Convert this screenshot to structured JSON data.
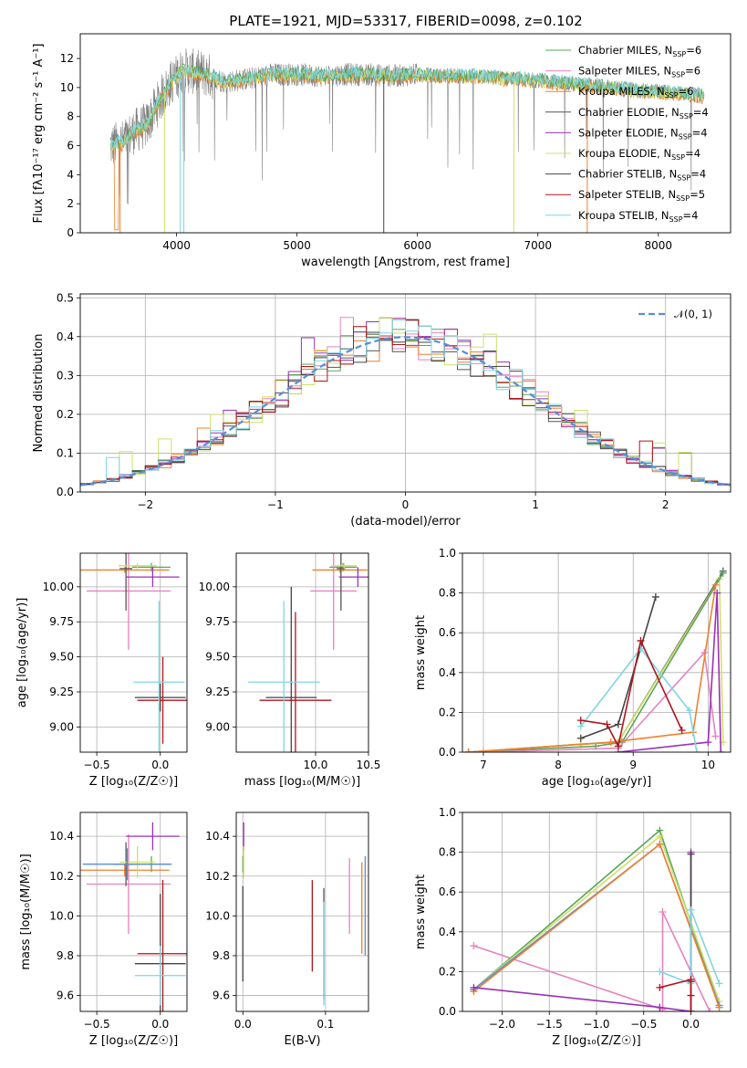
{
  "figure_title": "PLATE=1921, MJD=53317, FIBERID=0098, z=0.102",
  "colors": {
    "chabrier_miles": "#5aa55a",
    "salpeter_miles": "#e882bf",
    "kroupa_miles": "#f07f2e",
    "chabrier_elodie": "#555555",
    "salpeter_elodie": "#9b30b8",
    "kroupa_elodie": "#cfe06a",
    "chabrier_stelib": "#444444",
    "salpeter_stelib": "#b0141c",
    "kroupa_stelib": "#7fd6df",
    "data_grey": "#808080",
    "normal": "#5a8dd8",
    "mass_blue": "#5a8dd8"
  },
  "chart_data": [
    {
      "id": "spectrum",
      "type": "line",
      "title": "PLATE=1921, MJD=53317, FIBERID=0098, z=0.102",
      "xlabel": "wavelength [Angstrom, rest frame]",
      "ylabel": "Flux [fλ10⁻¹⁷ erg cm⁻² s⁻¹ A⁻¹]",
      "xlim": [
        3200,
        8600
      ],
      "ylim": [
        0,
        13.7
      ],
      "xticks": [
        4000,
        5000,
        6000,
        7000,
        8000
      ],
      "yticks": [
        0,
        2,
        4,
        6,
        8,
        10,
        12
      ],
      "legend_position": "top-right",
      "legend": [
        {
          "label": "Chabrier MILES, N",
          "sub": "SSP",
          "suffix": "=6",
          "color": "chabrier_miles"
        },
        {
          "label": "Salpeter MILES, N",
          "sub": "SSP",
          "suffix": "=6",
          "color": "salpeter_miles"
        },
        {
          "label": "Kroupa MILES, N",
          "sub": "SSP",
          "suffix": "=6",
          "color": "kroupa_miles"
        },
        {
          "label": "Chabrier ELODIE, N",
          "sub": "SSP",
          "suffix": "=4",
          "color": "chabrier_elodie"
        },
        {
          "label": "Salpeter ELODIE, N",
          "sub": "SSP",
          "suffix": "=4",
          "color": "salpeter_elodie"
        },
        {
          "label": "Kroupa ELODIE, N",
          "sub": "SSP",
          "suffix": "=4",
          "color": "kroupa_elodie"
        },
        {
          "label": "Chabrier STELIB, N",
          "sub": "SSP",
          "suffix": "=4",
          "color": "chabrier_stelib"
        },
        {
          "label": "Salpeter STELIB, N",
          "sub": "SSP",
          "suffix": "=5",
          "color": "salpeter_stelib"
        },
        {
          "label": "Kroupa STELIB, N",
          "sub": "SSP",
          "suffix": "=4",
          "color": "kroupa_stelib"
        }
      ],
      "continuum": [
        [
          3450,
          6.0
        ],
        [
          3550,
          6.2
        ],
        [
          3650,
          7.0
        ],
        [
          3750,
          7.4
        ],
        [
          3850,
          9.0
        ],
        [
          3950,
          10.3
        ],
        [
          4050,
          11.2
        ],
        [
          4200,
          11.0
        ],
        [
          4400,
          10.4
        ],
        [
          4600,
          10.6
        ],
        [
          4800,
          10.9
        ],
        [
          5000,
          10.9
        ],
        [
          5200,
          10.8
        ],
        [
          5400,
          10.9
        ],
        [
          5600,
          10.9
        ],
        [
          5800,
          10.8
        ],
        [
          6000,
          10.9
        ],
        [
          6200,
          10.8
        ],
        [
          6400,
          10.8
        ],
        [
          6600,
          10.7
        ],
        [
          6800,
          10.6
        ],
        [
          7000,
          10.5
        ],
        [
          7200,
          10.3
        ],
        [
          7400,
          10.2
        ],
        [
          7600,
          10.0
        ],
        [
          7800,
          9.8
        ],
        [
          8000,
          9.7
        ],
        [
          8200,
          9.6
        ],
        [
          8380,
          9.4
        ]
      ]
    },
    {
      "id": "residuals",
      "type": "line",
      "xlabel": "(data-model)/error",
      "ylabel": "Normed distribution",
      "xlim": [
        -2.5,
        2.5
      ],
      "ylim": [
        0,
        0.51
      ],
      "xticks": [
        -2,
        -1,
        0,
        1,
        2
      ],
      "yticks": [
        0.0,
        0.1,
        0.2,
        0.3,
        0.4,
        0.5
      ],
      "legend_position": "top-right",
      "legend_label": "𝒩(0, 1)",
      "bin_width": 0.1
    },
    {
      "id": "age_vs_Z",
      "type": "scatter",
      "xlabel": "Z [log₁₀(Z/Z☉)]",
      "ylabel": "age  [log₁₀(age/yr)]",
      "xlim": [
        -0.63,
        0.21
      ],
      "ylim": [
        8.82,
        10.24
      ],
      "xticks": [
        -0.5,
        0.0
      ],
      "yticks": [
        9.0,
        9.25,
        9.5,
        9.75,
        10.0
      ],
      "points": [
        {
          "color": "chabrier_miles",
          "x": -0.07,
          "y": 10.14,
          "xerr": 0.15,
          "yerr": 0.03
        },
        {
          "color": "salpeter_miles",
          "x": -0.25,
          "y": 9.97,
          "xerr": 0.33,
          "yerr": 0.42
        },
        {
          "color": "kroupa_miles",
          "x": -0.28,
          "y": 10.12,
          "xerr": 0.35,
          "yerr": 0.02
        },
        {
          "color": "chabrier_elodie",
          "x": -0.27,
          "y": 10.13,
          "xerr": 0.05,
          "yerr": 0.3
        },
        {
          "color": "salpeter_elodie",
          "x": -0.06,
          "y": 10.07,
          "xerr": 0.21,
          "yerr": 0.07
        },
        {
          "color": "kroupa_elodie",
          "x": -0.18,
          "y": 10.15,
          "xerr": 0.15,
          "yerr": 0.02
        },
        {
          "color": "chabrier_stelib",
          "x": 0.0,
          "y": 9.21,
          "xerr": 0.2,
          "yerr": 0.1
        },
        {
          "color": "salpeter_stelib",
          "x": 0.02,
          "y": 9.19,
          "xerr": 0.2,
          "yerr": 0.31
        },
        {
          "color": "kroupa_stelib",
          "x": -0.01,
          "y": 9.32,
          "xerr": 0.2,
          "yerr": 0.58
        }
      ]
    },
    {
      "id": "age_vs_mass",
      "type": "scatter",
      "xlabel": "mass [log₁₀(M/M☉)]",
      "ylabel": "",
      "xlim": [
        9.25,
        10.5
      ],
      "ylim": [
        8.82,
        10.24
      ],
      "xticks": [
        10.0,
        10.5
      ],
      "yticks": [
        9.0,
        9.25,
        9.5,
        9.75,
        10.0
      ],
      "points": [
        {
          "color": "chabrier_miles",
          "x": 10.26,
          "y": 10.14,
          "xerr": 0.13,
          "yerr": 0.03
        },
        {
          "color": "salpeter_miles",
          "x": 10.17,
          "y": 9.97,
          "xerr": 0.22,
          "yerr": 0.42
        },
        {
          "color": "kroupa_miles",
          "x": 10.23,
          "y": 10.12,
          "xerr": 0.26,
          "yerr": 0.02
        },
        {
          "color": "chabrier_elodie",
          "x": 10.24,
          "y": 10.13,
          "xerr": 0.04,
          "yerr": 0.3
        },
        {
          "color": "salpeter_elodie",
          "x": 10.4,
          "y": 10.07,
          "xerr": 0.18,
          "yerr": 0.07
        },
        {
          "color": "kroupa_elodie",
          "x": 10.27,
          "y": 10.15,
          "xerr": 0.12,
          "yerr": 0.02
        },
        {
          "color": "chabrier_stelib",
          "x": 9.77,
          "y": 9.21,
          "xerr": 0.24,
          "yerr": 0.79
        },
        {
          "color": "salpeter_stelib",
          "x": 9.81,
          "y": 9.19,
          "xerr": 0.34,
          "yerr": 0.63
        },
        {
          "color": "kroupa_stelib",
          "x": 9.7,
          "y": 9.32,
          "xerr": 0.34,
          "yerr": 0.58
        }
      ]
    },
    {
      "id": "mass_weight_vs_age",
      "type": "line",
      "xlabel": "age  [log₁₀(age/yr)]",
      "ylabel": "mass weight",
      "xlim": [
        6.72,
        10.3
      ],
      "ylim": [
        0,
        1.0
      ],
      "xticks": [
        7,
        8,
        9,
        10
      ],
      "yticks": [
        0.0,
        0.2,
        0.4,
        0.6,
        0.8,
        1.0
      ],
      "series": [
        {
          "color": "chabrier_elodie",
          "points": [
            [
              6.8,
              0.0
            ],
            [
              8.3,
              0.04
            ],
            [
              8.8,
              0.05
            ],
            [
              10.2,
              0.91
            ]
          ]
        },
        {
          "color": "kroupa_elodie",
          "points": [
            [
              6.8,
              0.0
            ],
            [
              8.3,
              0.04
            ],
            [
              8.8,
              0.05
            ],
            [
              10.15,
              0.87
            ],
            [
              10.2,
              0.05
            ]
          ]
        },
        {
          "color": "chabrier_miles",
          "points": [
            [
              6.8,
              0.0
            ],
            [
              8.5,
              0.03
            ],
            [
              8.85,
              0.05
            ],
            [
              10.2,
              0.9
            ]
          ]
        },
        {
          "color": "salpeter_miles",
          "points": [
            [
              7.0,
              0.0
            ],
            [
              8.8,
              0.02
            ],
            [
              9.95,
              0.5
            ],
            [
              10.1,
              0.08
            ]
          ]
        },
        {
          "color": "kroupa_miles",
          "points": [
            [
              6.8,
              0.0
            ],
            [
              8.7,
              0.05
            ],
            [
              9.8,
              0.1
            ],
            [
              10.1,
              0.84
            ]
          ]
        },
        {
          "color": "salpeter_elodie",
          "points": [
            [
              8.8,
              0.0
            ],
            [
              10.0,
              0.05
            ],
            [
              10.12,
              0.8
            ],
            [
              10.17,
              0.0
            ]
          ]
        },
        {
          "color": "chabrier_stelib",
          "points": [
            [
              8.3,
              0.07
            ],
            [
              8.8,
              0.14
            ],
            [
              9.3,
              0.78
            ]
          ]
        },
        {
          "color": "kroupa_stelib",
          "points": [
            [
              8.3,
              0.13
            ],
            [
              9.1,
              0.52
            ],
            [
              9.75,
              0.21
            ],
            [
              9.85,
              0.0
            ]
          ]
        },
        {
          "color": "salpeter_stelib",
          "points": [
            [
              8.3,
              0.16
            ],
            [
              8.65,
              0.14
            ],
            [
              8.8,
              0.03
            ],
            [
              9.1,
              0.56
            ],
            [
              9.65,
              0.11
            ]
          ]
        }
      ]
    },
    {
      "id": "mass_vs_Z",
      "type": "scatter",
      "xlabel": "Z [log₁₀(Z/Z☉)]",
      "ylabel": "mass [log₁₀(M/M☉)]",
      "xlim": [
        -0.63,
        0.21
      ],
      "ylim": [
        9.52,
        10.52
      ],
      "xticks": [
        -0.5,
        0.0
      ],
      "yticks": [
        9.6,
        9.8,
        10.0,
        10.2,
        10.4
      ],
      "points": [
        {
          "color": "chabrier_miles",
          "x": -0.07,
          "y": 10.26,
          "xerr": 0.15,
          "yerr": 0.04
        },
        {
          "color": "salpeter_miles",
          "x": -0.25,
          "y": 10.16,
          "xerr": 0.33,
          "yerr": 0.25
        },
        {
          "color": "kroupa_miles",
          "x": -0.28,
          "y": 10.23,
          "xerr": 0.35,
          "yerr": 0.03
        },
        {
          "color": "chabrier_elodie",
          "x": -0.27,
          "y": 10.26,
          "xerr": 0.1,
          "yerr": 0.11
        },
        {
          "color": "salpeter_elodie",
          "x": -0.06,
          "y": 10.4,
          "xerr": 0.21,
          "yerr": 0.07
        },
        {
          "color": "kroupa_elodie",
          "x": -0.18,
          "y": 10.27,
          "xerr": 0.14,
          "yerr": 0.08
        },
        {
          "color": "chabrier_stelib",
          "x": 0.0,
          "y": 9.76,
          "xerr": 0.2,
          "yerr": 0.35
        },
        {
          "color": "salpeter_stelib",
          "x": 0.02,
          "y": 9.81,
          "xerr": 0.2,
          "yerr": 0.37
        },
        {
          "color": "kroupa_stelib",
          "x": 0.0,
          "y": 9.7,
          "xerr": 0.2,
          "yerr": 0.15
        },
        {
          "color": "mass_blue",
          "x": -0.26,
          "y": 10.26,
          "xerr": 0.35,
          "yerr": 0.08
        }
      ]
    },
    {
      "id": "mass_vs_EBV",
      "type": "scatter",
      "xlabel": "E(B-V)",
      "ylabel": "",
      "xlim": [
        -0.008,
        0.152
      ],
      "ylim": [
        9.52,
        10.52
      ],
      "xticks": [
        0.0,
        0.1
      ],
      "yticks": [
        9.6,
        9.8,
        10.0,
        10.2,
        10.4
      ],
      "points": [
        {
          "color": "chabrier_miles",
          "x": 0.0,
          "y": 10.26,
          "yerr": 0.04
        },
        {
          "color": "salpeter_elodie",
          "x": 0.001,
          "y": 10.4,
          "yerr": 0.07
        },
        {
          "color": "kroupa_elodie",
          "x": 0.001,
          "y": 10.27,
          "yerr": 0.08
        },
        {
          "color": "chabrier_stelib",
          "x": 0.0,
          "y": 9.91,
          "yerr": 0.24
        },
        {
          "color": "salpeter_stelib",
          "x": 0.084,
          "y": 9.95,
          "yerr": 0.23
        },
        {
          "color": "chabrier_elodie",
          "x": 0.098,
          "y": 9.86,
          "yerr": 0.28
        },
        {
          "color": "kroupa_stelib",
          "x": 0.098,
          "y": 9.81,
          "yerr": 0.26
        },
        {
          "color": "salpeter_miles",
          "x": 0.129,
          "y": 10.1,
          "yerr": 0.19
        },
        {
          "color": "kroupa_miles",
          "x": 0.144,
          "y": 10.04,
          "yerr": 0.23
        },
        {
          "color": "mass_blue",
          "x": 0.148,
          "y": 10.05,
          "yerr": 0.25
        }
      ]
    },
    {
      "id": "mass_weight_vs_Z",
      "type": "line",
      "xlabel": "Z [log₁₀(Z/Z☉)]",
      "ylabel": "mass weight",
      "xlim": [
        -2.42,
        0.42
      ],
      "ylim": [
        0,
        1.0
      ],
      "xticks": [
        -2.0,
        -1.5,
        -1.0,
        -0.5,
        0.0
      ],
      "xtick_labels": [
        "−2.0",
        "−1.5",
        "−1.0",
        "−0.5",
        "0.0"
      ],
      "yticks": [
        0.0,
        0.2,
        0.4,
        0.6,
        0.8,
        1.0
      ],
      "series": [
        {
          "color": "salpeter_miles",
          "points": [
            [
              -2.3,
              0.33
            ],
            [
              -0.3,
              0.01
            ],
            [
              -0.3,
              0.5
            ],
            [
              0.2,
              0.0
            ]
          ]
        },
        {
          "color": "chabrier_miles",
          "points": [
            [
              -2.3,
              0.11
            ],
            [
              -0.33,
              0.91
            ],
            [
              0.3,
              0.02
            ]
          ]
        },
        {
          "color": "kroupa_elodie",
          "points": [
            [
              -2.3,
              0.11
            ],
            [
              -0.33,
              0.88
            ],
            [
              0.3,
              0.05
            ]
          ]
        },
        {
          "color": "mass_blue",
          "points": [
            [
              -2.3,
              0.11
            ],
            [
              -0.33,
              0.84
            ],
            [
              0.3,
              0.03
            ]
          ]
        },
        {
          "color": "kroupa_miles",
          "points": [
            [
              -2.3,
              0.1
            ],
            [
              -0.33,
              0.84
            ],
            [
              0.3,
              0.02
            ]
          ]
        },
        {
          "color": "salpeter_elodie",
          "points": [
            [
              -2.3,
              0.12
            ],
            [
              -0.33,
              0.02
            ],
            [
              0.0,
              0.0
            ],
            [
              0.0,
              0.8
            ]
          ]
        },
        {
          "color": "chabrier_stelib",
          "points": [
            [
              0.0,
              0.0
            ],
            [
              0.0,
              0.79
            ],
            [
              0.0,
              0.15
            ]
          ]
        },
        {
          "color": "kroupa_stelib",
          "points": [
            [
              -0.33,
              0.2
            ],
            [
              0.0,
              0.14
            ],
            [
              0.0,
              0.51
            ],
            [
              0.3,
              0.14
            ]
          ]
        },
        {
          "color": "salpeter_stelib",
          "points": [
            [
              -0.33,
              0.12
            ],
            [
              0.0,
              0.16
            ],
            [
              0.0,
              0.08
            ],
            [
              0.0,
              0.0
            ]
          ]
        }
      ]
    }
  ]
}
